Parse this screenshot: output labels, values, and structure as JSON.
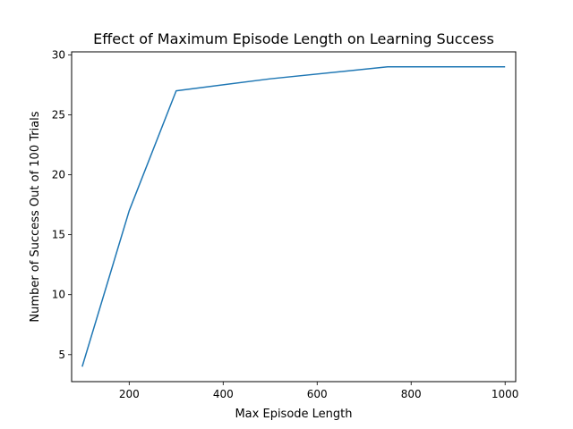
{
  "chart_data": {
    "type": "line",
    "title": "Effect of Maximum Episode Length on Learning Success",
    "xlabel": "Max Episode Length",
    "ylabel": "Number of Success Out of 100 Trials",
    "xlim": [
      77.5,
      1022.5
    ],
    "ylim": [
      2.75,
      30.25
    ],
    "xticks": [
      200,
      400,
      600,
      800,
      1000
    ],
    "yticks": [
      5,
      10,
      15,
      20,
      25,
      30
    ],
    "grid": false,
    "series": [
      {
        "color": "#1f77b4",
        "x": [
          100,
          200,
          300,
          500,
          750,
          1000
        ],
        "y": [
          4,
          17,
          27,
          28,
          29,
          29
        ]
      }
    ]
  }
}
